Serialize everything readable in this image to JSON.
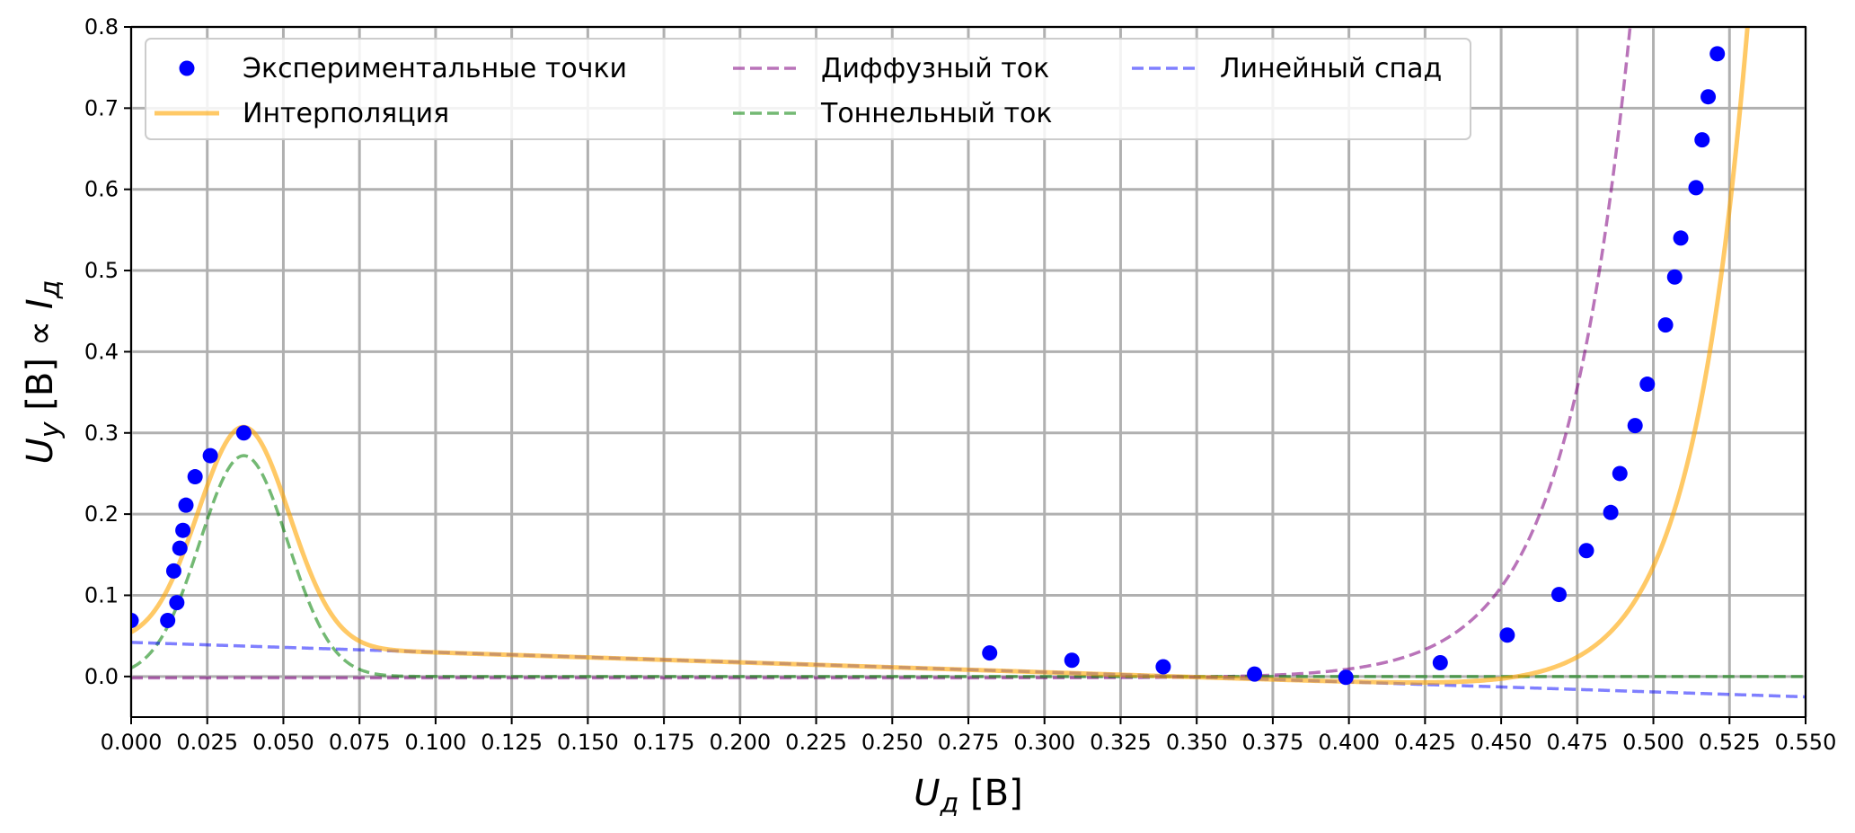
{
  "chart_data": {
    "type": "scatter",
    "xlim": [
      0.0,
      0.55
    ],
    "ylim": [
      -0.05,
      0.8
    ],
    "grid": true,
    "legend_position": "top-left",
    "xlabel": "U_д [B]",
    "ylabel": "U_y [B] ∝ I_д",
    "x_ticks": [
      "0.000",
      "0.025",
      "0.050",
      "0.075",
      "0.100",
      "0.125",
      "0.150",
      "0.175",
      "0.200",
      "0.225",
      "0.250",
      "0.275",
      "0.300",
      "0.325",
      "0.350",
      "0.375",
      "0.400",
      "0.425",
      "0.450",
      "0.475",
      "0.500",
      "0.525",
      "0.550"
    ],
    "y_ticks": [
      "0.0",
      "0.1",
      "0.2",
      "0.3",
      "0.4",
      "0.5",
      "0.6",
      "0.7",
      "0.8"
    ],
    "series": [
      {
        "name": "Экспериментальные точки",
        "kind": "scatter",
        "color": "#0000ff",
        "points": [
          [
            0.0,
            0.069
          ],
          [
            0.012,
            0.069
          ],
          [
            0.014,
            0.13
          ],
          [
            0.015,
            0.091
          ],
          [
            0.016,
            0.158
          ],
          [
            0.017,
            0.18
          ],
          [
            0.018,
            0.211
          ],
          [
            0.021,
            0.246
          ],
          [
            0.026,
            0.272
          ],
          [
            0.037,
            0.3
          ],
          [
            0.282,
            0.029
          ],
          [
            0.309,
            0.02
          ],
          [
            0.339,
            0.012
          ],
          [
            0.369,
            0.003
          ],
          [
            0.399,
            -0.001
          ],
          [
            0.43,
            0.017
          ],
          [
            0.452,
            0.051
          ],
          [
            0.469,
            0.101
          ],
          [
            0.478,
            0.155
          ],
          [
            0.486,
            0.202
          ],
          [
            0.489,
            0.25
          ],
          [
            0.494,
            0.309
          ],
          [
            0.498,
            0.36
          ],
          [
            0.504,
            0.433
          ],
          [
            0.507,
            0.492
          ],
          [
            0.509,
            0.54
          ],
          [
            0.514,
            0.602
          ],
          [
            0.516,
            0.661
          ],
          [
            0.518,
            0.714
          ],
          [
            0.521,
            0.767
          ]
        ]
      },
      {
        "name": "Интерполяция",
        "kind": "line",
        "color": "#ffa500",
        "opacity": 0.6,
        "dash": "solid",
        "model": {
          "a": 0.042,
          "b": -0.122,
          "g_amp": 0.27,
          "g_mu": 0.037,
          "g_sigma": 0.015,
          "d_x0": 0.375,
          "d_k": 0.0185,
          "d_amp": 0.00018
        }
      },
      {
        "name": "Диффузный ток",
        "kind": "line",
        "color": "#800080",
        "opacity": 0.55,
        "dash": "dashed",
        "model": {
          "d_x0": 0.36,
          "d_k": 0.0215,
          "d_amp": 0.0017
        }
      },
      {
        "name": "Тоннельный ток",
        "kind": "line",
        "color": "#008000",
        "opacity": 0.55,
        "dash": "dashed",
        "model": {
          "g_amp": 0.272,
          "g_mu": 0.037,
          "g_sigma": 0.0145
        }
      },
      {
        "name": "Линейный спад",
        "kind": "line",
        "color": "#0000ff",
        "opacity": 0.5,
        "dash": "dashed",
        "model": {
          "a": 0.042,
          "b": -0.122
        }
      }
    ],
    "legend_columns": [
      [
        "Экспериментальные точки",
        "Интерполяция"
      ],
      [
        "Диффузный ток",
        "Тоннельный ток"
      ],
      [
        "Линейный спад"
      ]
    ]
  }
}
